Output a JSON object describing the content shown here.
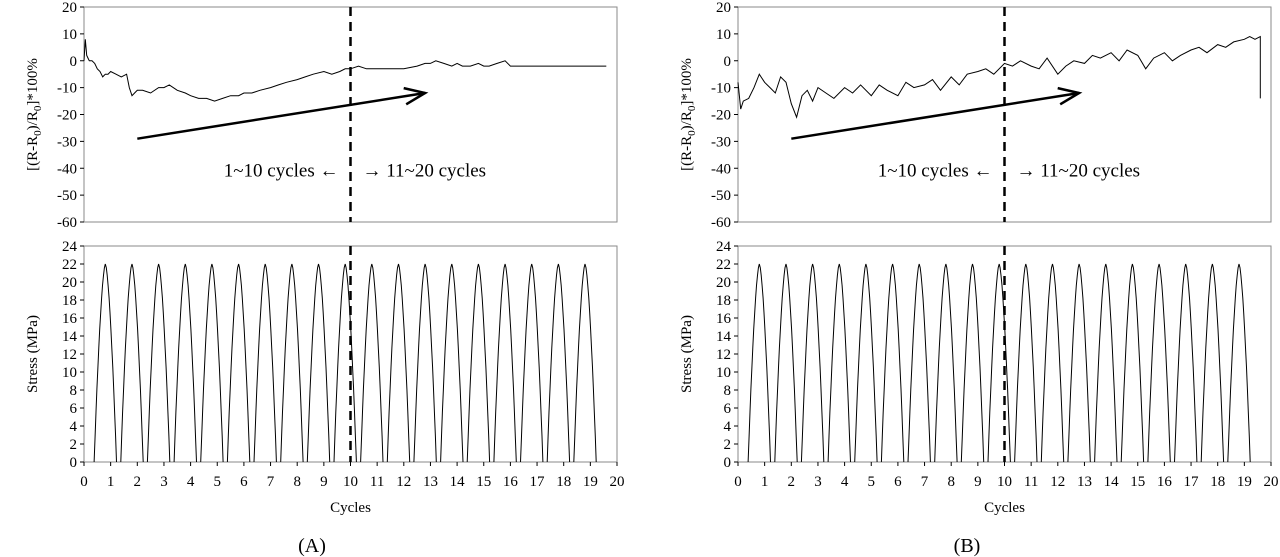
{
  "figure": {
    "panels": [
      {
        "id": "A",
        "label": "(A)"
      },
      {
        "id": "B",
        "label": "(B)"
      }
    ]
  },
  "chart_data": [
    {
      "panel": "A",
      "subplot": "resistance",
      "type": "line",
      "xlim": [
        0,
        20
      ],
      "ylim": [
        -60,
        20
      ],
      "yticks": [
        20,
        10,
        0,
        -10,
        -20,
        -30,
        -40,
        -50,
        -60
      ],
      "ylabel": "[(R-R0)/R0]*100%",
      "ylabel_parts": {
        "p1": "[(R-R",
        "s1": "0",
        "p2": ")/R",
        "s2": "0",
        "p3": "]*100%"
      },
      "divider_x": 10,
      "annotations": {
        "left": "1~10 cycles ←",
        "right": "→ 11~20 cycles"
      },
      "arrow": {
        "from": [
          2,
          -29
        ],
        "to": [
          12.8,
          -12
        ]
      },
      "series": [
        {
          "x": [
            0,
            0.05,
            0.1,
            0.15,
            0.2,
            0.3,
            0.4,
            0.5,
            0.6,
            0.7,
            0.8,
            0.9,
            1.0,
            1.2,
            1.4,
            1.6,
            1.7,
            1.8,
            1.9,
            2.0,
            2.2,
            2.5,
            2.8,
            3.0,
            3.2,
            3.5,
            3.8,
            4.0,
            4.3,
            4.6,
            4.9,
            5.2,
            5.5,
            5.8,
            6.0,
            6.3,
            6.6,
            7.0,
            7.3,
            7.6,
            8.0,
            8.3,
            8.6,
            9.0,
            9.3,
            9.6,
            9.8,
            10.0,
            10.3,
            10.6,
            11.0,
            11.5,
            12.0,
            12.5,
            12.8,
            13.0,
            13.2,
            13.5,
            13.8,
            14.0,
            14.2,
            14.5,
            14.8,
            15.0,
            15.2,
            15.5,
            15.8,
            16.0,
            16.2,
            16.5,
            17.0,
            17.5,
            18.0,
            18.5,
            19.0,
            19.3,
            19.6
          ],
          "y": [
            0,
            8,
            2,
            1,
            0,
            0,
            -1,
            -3,
            -4,
            -6,
            -5,
            -5,
            -4,
            -5,
            -6,
            -5,
            -10,
            -13,
            -12,
            -11,
            -11,
            -12,
            -10,
            -10,
            -9,
            -11,
            -12,
            -13,
            -14,
            -14,
            -15,
            -14,
            -13,
            -13,
            -12,
            -12,
            -11,
            -10,
            -9,
            -8,
            -7,
            -6,
            -5,
            -4,
            -5,
            -4,
            -3,
            -3,
            -2,
            -3,
            -3,
            -3,
            -3,
            -2,
            -1,
            -1,
            0,
            -1,
            -2,
            -1,
            -2,
            -2,
            -1,
            -2,
            -2,
            -1,
            0,
            -2,
            -2,
            -2,
            -2,
            -2,
            -2,
            -2,
            -2,
            -2,
            -2
          ]
        }
      ]
    },
    {
      "panel": "A",
      "subplot": "stress",
      "type": "line",
      "xlim": [
        0,
        20
      ],
      "ylim": [
        0,
        24
      ],
      "xticks": [
        0,
        1,
        2,
        3,
        4,
        5,
        6,
        7,
        8,
        9,
        10,
        11,
        12,
        13,
        14,
        15,
        16,
        17,
        18,
        19,
        20
      ],
      "yticks": [
        0,
        2,
        4,
        6,
        8,
        10,
        12,
        14,
        16,
        18,
        20,
        22,
        24
      ],
      "xlabel": "Cycles",
      "ylabel": "Stress (MPa)",
      "divider_x": 10,
      "series": [
        {
          "peaks_x": [
            0.8,
            1.8,
            2.8,
            3.8,
            4.8,
            5.8,
            6.8,
            7.8,
            8.8,
            9.8,
            10.8,
            11.8,
            12.8,
            13.8,
            14.8,
            15.8,
            16.8,
            17.8,
            18.8
          ],
          "peak_y": 22,
          "min_y": 0
        }
      ]
    },
    {
      "panel": "B",
      "subplot": "resistance",
      "type": "line",
      "xlim": [
        0,
        20
      ],
      "ylim": [
        -60,
        20
      ],
      "yticks": [
        20,
        10,
        0,
        -10,
        -20,
        -30,
        -40,
        -50,
        -60
      ],
      "ylabel": "[(R-R0)/R0]*100%",
      "ylabel_parts": {
        "p1": "[(R-R",
        "s1": "0",
        "p2": ")/R",
        "s2": "0",
        "p3": "]*100%"
      },
      "divider_x": 10,
      "annotations": {
        "left": "1~10 cycles ←",
        "right": "→ 11~20 cycles"
      },
      "arrow": {
        "from": [
          2,
          -29
        ],
        "to": [
          12.8,
          -12
        ]
      },
      "series": [
        {
          "x": [
            0,
            0.1,
            0.2,
            0.4,
            0.6,
            0.8,
            1.0,
            1.2,
            1.4,
            1.6,
            1.8,
            2.0,
            2.2,
            2.4,
            2.6,
            2.8,
            3.0,
            3.3,
            3.6,
            4.0,
            4.3,
            4.6,
            5.0,
            5.3,
            5.6,
            6.0,
            6.3,
            6.6,
            7.0,
            7.3,
            7.6,
            8.0,
            8.3,
            8.6,
            9.0,
            9.3,
            9.6,
            10.0,
            10.3,
            10.6,
            11.0,
            11.3,
            11.6,
            12.0,
            12.3,
            12.6,
            13.0,
            13.3,
            13.6,
            14.0,
            14.3,
            14.6,
            15.0,
            15.3,
            15.6,
            16.0,
            16.3,
            16.6,
            17.0,
            17.3,
            17.6,
            18.0,
            18.3,
            18.6,
            19.0,
            19.2,
            19.4,
            19.6,
            19.6
          ],
          "y": [
            -8,
            -18,
            -15,
            -14,
            -10,
            -5,
            -8,
            -10,
            -12,
            -6,
            -8,
            -16,
            -21,
            -13,
            -11,
            -15,
            -10,
            -12,
            -14,
            -10,
            -12,
            -9,
            -13,
            -9,
            -11,
            -13,
            -8,
            -10,
            -9,
            -7,
            -11,
            -6,
            -9,
            -5,
            -4,
            -3,
            -5,
            -1,
            -2,
            0,
            -2,
            -3,
            1,
            -5,
            -2,
            0,
            -1,
            2,
            1,
            3,
            0,
            4,
            2,
            -3,
            1,
            3,
            0,
            2,
            4,
            5,
            3,
            6,
            5,
            7,
            8,
            9,
            8,
            9,
            -14
          ]
        }
      ]
    },
    {
      "panel": "B",
      "subplot": "stress",
      "type": "line",
      "xlim": [
        0,
        20
      ],
      "ylim": [
        0,
        24
      ],
      "xticks": [
        0,
        1,
        2,
        3,
        4,
        5,
        6,
        7,
        8,
        9,
        10,
        11,
        12,
        13,
        14,
        15,
        16,
        17,
        18,
        19,
        20
      ],
      "yticks": [
        0,
        2,
        4,
        6,
        8,
        10,
        12,
        14,
        16,
        18,
        20,
        22,
        24
      ],
      "xlabel": "Cycles",
      "ylabel": "Stress (MPa)",
      "divider_x": 10,
      "series": [
        {
          "peaks_x": [
            0.8,
            1.8,
            2.8,
            3.8,
            4.8,
            5.8,
            6.8,
            7.8,
            8.8,
            9.8,
            10.8,
            11.8,
            12.8,
            13.8,
            14.8,
            15.8,
            16.8,
            17.8,
            18.8
          ],
          "peak_y": 22,
          "min_y": 0
        }
      ]
    }
  ]
}
